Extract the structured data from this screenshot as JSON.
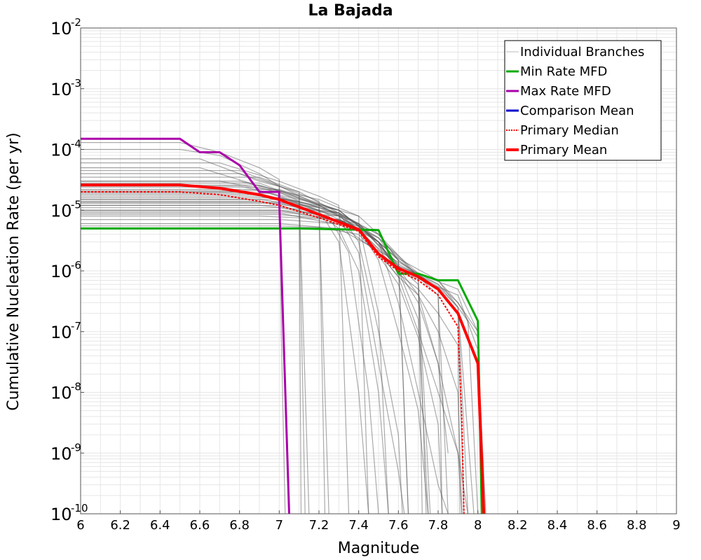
{
  "colors": {
    "branches": "#555555",
    "min_rate": "#00aa00",
    "max_rate": "#aa00aa",
    "comparison_mean": "#0000cc",
    "primary_median": "#ff0000",
    "primary_mean": "#ff0000",
    "grid": "#e6e6e6"
  },
  "chart_data": {
    "type": "line",
    "title": "La Bajada",
    "xlabel": "Magnitude",
    "ylabel": "Cumulative Nucleation Rate (per yr)",
    "xlim": [
      6,
      9
    ],
    "ylim": [
      1e-10,
      0.01
    ],
    "yscale": "log",
    "grid": true,
    "legend_position": "top-right",
    "x_ticks": [
      "6",
      "6.2",
      "6.4",
      "6.6",
      "6.8",
      "7",
      "7.2",
      "7.4",
      "7.6",
      "7.8",
      "8",
      "8.2",
      "8.4",
      "8.6",
      "8.8",
      "9"
    ],
    "y_ticks": [
      {
        "base": "10",
        "exp": "-10",
        "value": 1e-10
      },
      {
        "base": "10",
        "exp": "-9",
        "value": 1e-09
      },
      {
        "base": "10",
        "exp": "-8",
        "value": 1e-08
      },
      {
        "base": "10",
        "exp": "-7",
        "value": 1e-07
      },
      {
        "base": "10",
        "exp": "-6",
        "value": 1e-06
      },
      {
        "base": "10",
        "exp": "-5",
        "value": 1e-05
      },
      {
        "base": "10",
        "exp": "-4",
        "value": 0.0001
      },
      {
        "base": "10",
        "exp": "-3",
        "value": 0.001
      },
      {
        "base": "10",
        "exp": "-2",
        "value": 0.01
      }
    ],
    "series": [
      {
        "name": "Individual Branches",
        "style": "thin",
        "branches": [
          {
            "x": [
              6,
              6.5,
              6.7,
              6.9,
              7.0,
              7.01,
              7.03
            ],
            "y": [
              0.00013,
              0.00013,
              9e-05,
              5e-05,
              3.2e-05,
              1e-07,
              1e-10
            ]
          },
          {
            "x": [
              6,
              6.5,
              6.7,
              6.9,
              7.0,
              7.05
            ],
            "y": [
              0.0001,
              0.0001,
              8e-05,
              4e-05,
              2.5e-05,
              1e-10
            ]
          },
          {
            "x": [
              6,
              6.6,
              6.9,
              7.1,
              7.15
            ],
            "y": [
              7e-05,
              7e-05,
              3e-05,
              2e-05,
              1e-10
            ]
          },
          {
            "x": [
              6,
              6.6,
              6.9,
              7.1,
              7.13
            ],
            "y": [
              5e-05,
              5e-05,
              2.5e-05,
              1.7e-05,
              1e-10
            ]
          },
          {
            "x": [
              6,
              6.7,
              7.0,
              7.1,
              7.11
            ],
            "y": [
              3e-05,
              3e-05,
              2e-05,
              1.4e-05,
              1e-10
            ]
          },
          {
            "x": [
              6,
              6.8,
              7.0,
              7.2,
              7.23
            ],
            "y": [
              4e-05,
              4e-05,
              2.5e-05,
              1.4e-05,
              1e-10
            ]
          },
          {
            "x": [
              6,
              6.8,
              7.1,
              7.2,
              7.25
            ],
            "y": [
              2e-05,
              2e-05,
              1.4e-05,
              1.1e-05,
              1e-10
            ]
          },
          {
            "x": [
              6,
              6.7,
              7.0,
              7.2,
              7.3,
              7.35
            ],
            "y": [
              6e-05,
              6e-05,
              3e-05,
              1.7e-05,
              1.2e-05,
              1e-10
            ]
          },
          {
            "x": [
              6,
              6.8,
              7.1,
              7.3,
              7.4,
              7.45
            ],
            "y": [
              2.5e-05,
              2.5e-05,
              1.5e-05,
              1e-05,
              8e-06,
              1e-10
            ]
          },
          {
            "x": [
              6,
              6.9,
              7.2,
              7.3,
              7.4,
              7.5,
              7.55
            ],
            "y": [
              1.5e-05,
              1.5e-05,
              1.1e-05,
              9e-06,
              6e-06,
              2e-07,
              1e-10
            ]
          },
          {
            "x": [
              6,
              6.8,
              7.2,
              7.4,
              7.5,
              7.6,
              7.65
            ],
            "y": [
              3e-05,
              3e-05,
              1.5e-05,
              8e-06,
              4e-06,
              1.5e-06,
              1e-10
            ]
          },
          {
            "x": [
              6,
              6.9,
              7.3,
              7.5,
              7.6,
              7.7,
              7.74
            ],
            "y": [
              1.2e-05,
              1.2e-05,
              9e-06,
              4e-06,
              1.5e-06,
              8e-07,
              1e-10
            ]
          },
          {
            "x": [
              6,
              6.9,
              7.3,
              7.5,
              7.6,
              7.7,
              7.76
            ],
            "y": [
              8e-06,
              8e-06,
              7e-06,
              3.5e-06,
              1.2e-06,
              6e-07,
              1e-10
            ]
          },
          {
            "x": [
              6,
              6.8,
              7.2,
              7.5,
              7.7,
              7.8,
              7.85
            ],
            "y": [
              2e-05,
              2e-05,
              1.2e-05,
              4e-06,
              8e-07,
              4e-07,
              1e-10
            ]
          },
          {
            "x": [
              6,
              7.0,
              7.4,
              7.6,
              7.8,
              7.9,
              7.93
            ],
            "y": [
              1e-05,
              1e-05,
              6e-06,
              1.5e-06,
              5e-07,
              2e-07,
              1e-10
            ]
          },
          {
            "x": [
              6,
              7.0,
              7.3,
              7.6,
              7.8,
              7.9,
              7.95
            ],
            "y": [
              6e-06,
              6e-06,
              5e-06,
              1.4e-06,
              6e-07,
              2.5e-07,
              1e-10
            ]
          },
          {
            "x": [
              6,
              6.9,
              7.3,
              7.6,
              7.8,
              7.95,
              8.0
            ],
            "y": [
              1.8e-05,
              1.8e-05,
              1e-05,
              1.6e-06,
              7e-07,
              1.5e-07,
              1e-10
            ]
          },
          {
            "x": [
              6,
              6.9,
              7.3,
              7.6,
              7.9,
              8.0,
              8.02
            ],
            "y": [
              1.4e-05,
              1.4e-05,
              9e-06,
              1.2e-06,
              5e-07,
              1e-07,
              1e-10
            ]
          },
          {
            "x": [
              6,
              7.0,
              7.4,
              7.6,
              7.9,
              8.0,
              8.04
            ],
            "y": [
              9e-06,
              9e-06,
              5e-06,
              1e-06,
              4e-07,
              5e-08,
              1e-10
            ]
          },
          {
            "x": [
              6,
              7.0,
              7.3,
              7.5,
              7.6,
              7.7,
              7.8,
              7.85
            ],
            "y": [
              2.2e-05,
              2.2e-05,
              1e-05,
              3e-06,
              1e-06,
              3e-07,
              3e-08,
              1e-09
            ]
          },
          {
            "x": [
              6,
              7.0,
              7.2,
              7.4,
              7.5,
              7.6,
              7.7,
              7.75
            ],
            "y": [
              1.6e-05,
              1.6e-05,
              1e-05,
              5e-06,
              1.5e-06,
              1e-07,
              5e-09,
              1e-10
            ]
          },
          {
            "x": [
              6,
              6.9,
              7.2,
              7.3,
              7.4,
              7.5,
              7.6,
              7.63
            ],
            "y": [
              2.8e-05,
              2.8e-05,
              1.2e-05,
              8e-06,
              2e-06,
              3e-08,
              5e-10,
              1e-10
            ]
          },
          {
            "x": [
              6,
              7.0,
              7.2,
              7.3,
              7.4,
              7.5,
              7.55
            ],
            "y": [
              1.3e-05,
              1.3e-05,
              9e-06,
              5e-06,
              1e-06,
              1e-08,
              1e-10
            ]
          },
          {
            "x": [
              6,
              7.0,
              7.25,
              7.35,
              7.45,
              7.5
            ],
            "y": [
              1.1e-05,
              1.1e-05,
              8e-06,
              2e-06,
              1e-08,
              1e-10
            ]
          },
          {
            "x": [
              6,
              6.95,
              7.2,
              7.3,
              7.4,
              7.45
            ],
            "y": [
              1.9e-05,
              1.9e-05,
              1e-05,
              3e-06,
              1e-08,
              1e-10
            ]
          },
          {
            "x": [
              6,
              7.0,
              7.3,
              7.5,
              7.6,
              7.7,
              7.8,
              7.9,
              7.92
            ],
            "y": [
              7e-06,
              7e-06,
              6e-06,
              2e-06,
              8e-07,
              1e-07,
              1e-08,
              1e-09,
              1e-10
            ]
          },
          {
            "x": [
              6,
              7.0,
              7.3,
              7.5,
              7.7,
              7.8,
              7.9,
              7.95
            ],
            "y": [
              1.5e-05,
              1.5e-05,
              8e-06,
              3e-06,
              4e-07,
              3e-08,
              1e-09,
              1e-10
            ]
          },
          {
            "x": [
              6,
              7.0,
              7.3,
              7.5,
              7.6,
              7.7,
              7.8,
              7.85
            ],
            "y": [
              1e-05,
              1e-05,
              8e-06,
              3e-06,
              3e-07,
              1e-08,
              3e-10,
              1e-10
            ]
          },
          {
            "x": [
              6,
              6.9,
              7.3,
              7.5,
              7.6,
              7.7,
              7.75
            ],
            "y": [
              2.4e-05,
              2.4e-05,
              1e-05,
              3e-06,
              1e-06,
              1.6e-07,
              1e-10
            ]
          },
          {
            "x": [
              6,
              7.0,
              7.2,
              7.4,
              7.5,
              7.6,
              7.7,
              7.8,
              7.82
            ],
            "y": [
              5.5e-06,
              5.5e-06,
              5.2e-06,
              4e-06,
              1.8e-06,
              6e-07,
              8e-08,
              3e-09,
              1e-10
            ]
          },
          {
            "x": [
              6,
              6.9,
              7.1,
              7.3,
              7.4,
              7.5,
              7.6,
              7.62
            ],
            "y": [
              3.5e-05,
              3.5e-05,
              2e-05,
              9e-06,
              3e-06,
              1e-07,
              2e-09,
              1e-10
            ]
          },
          {
            "x": [
              6,
              6.8,
              7.0,
              7.2,
              7.4,
              7.6,
              7.8,
              7.9,
              8.0,
              8.02
            ],
            "y": [
              4.5e-05,
              4.5e-05,
              2.5e-05,
              1.2e-05,
              6e-06,
              1.2e-06,
              6e-07,
              3e-07,
              1e-07,
              1e-10
            ]
          },
          {
            "x": [
              6,
              6.9,
              7.2,
              7.4,
              7.6,
              7.8,
              7.9,
              8.0,
              8.03
            ],
            "y": [
              1.7e-05,
              1.7e-05,
              1.1e-05,
              6e-06,
              1.1e-06,
              7e-07,
              3e-07,
              8e-08,
              1e-10
            ]
          },
          {
            "x": [
              6,
              7.0,
              7.3,
              7.4,
              7.5,
              7.6,
              7.7,
              7.8,
              7.9,
              7.92
            ],
            "y": [
              8.5e-06,
              8.5e-06,
              7e-06,
              5e-06,
              2e-06,
              8e-07,
              4e-07,
              1e-07,
              1e-08,
              1e-10
            ]
          },
          {
            "x": [
              6,
              6.9,
              7.1,
              7.3,
              7.5,
              7.6,
              7.7,
              7.8,
              7.9,
              7.91
            ],
            "y": [
              2.6e-05,
              2.6e-05,
              1.6e-05,
              1e-05,
              3e-06,
              9e-07,
              5e-07,
              2e-07,
              6e-08,
              1e-10
            ]
          },
          {
            "x": [
              6,
              7.0,
              7.4,
              7.6,
              7.8,
              7.9,
              7.98
            ],
            "y": [
              1.2e-05,
              1.2e-05,
              5.5e-06,
              1.3e-06,
              5.5e-07,
              2.5e-07,
              1e-10
            ]
          },
          {
            "x": [
              6,
              7.0,
              7.3,
              7.5,
              7.6,
              7.65
            ],
            "y": [
              9.5e-06,
              9.5e-06,
              7e-06,
              3e-06,
              1.5e-06,
              1e-10
            ]
          },
          {
            "x": [
              6,
              7.0,
              7.3,
              7.5,
              7.7,
              7.72
            ],
            "y": [
              1.35e-05,
              1.35e-05,
              8e-06,
              3.5e-06,
              8e-07,
              1e-10
            ]
          },
          {
            "x": [
              6,
              6.9,
              7.3,
              7.5,
              7.7,
              7.8,
              7.82
            ],
            "y": [
              2.1e-05,
              2.1e-05,
              9e-06,
              3.5e-06,
              9e-07,
              5e-07,
              1e-10
            ]
          }
        ]
      },
      {
        "name": "Min Rate MFD",
        "x": [
          6.0,
          7.0,
          7.1,
          7.5,
          7.6,
          7.7,
          7.8,
          7.9,
          8.0,
          8.02
        ],
        "y": [
          5e-06,
          5e-06,
          5e-06,
          4.7e-06,
          9e-07,
          9e-07,
          7e-07,
          7e-07,
          1.5e-07,
          1e-10
        ]
      },
      {
        "name": "Max Rate MFD",
        "x": [
          6.0,
          6.5,
          6.6,
          6.7,
          6.8,
          6.9,
          7.0,
          7.0,
          7.05
        ],
        "y": [
          0.00015,
          0.00015,
          9e-05,
          9e-05,
          5.5e-05,
          2e-05,
          2e-05,
          1.5e-05,
          1e-10
        ]
      },
      {
        "name": "Comparison Mean",
        "x": [],
        "y": []
      },
      {
        "name": "Primary Median",
        "x": [
          6.0,
          6.5,
          6.7,
          6.9,
          7.0,
          7.2,
          7.4,
          7.5,
          7.6,
          7.7,
          7.8,
          7.9,
          7.92,
          7.93
        ],
        "y": [
          2e-05,
          2e-05,
          1.8e-05,
          1.4e-05,
          1.2e-05,
          7.5e-06,
          4.5e-06,
          1.7e-06,
          1e-06,
          7e-07,
          4e-07,
          1.2e-07,
          3e-09,
          1e-10
        ]
      },
      {
        "name": "Primary Mean",
        "x": [
          6.0,
          6.5,
          6.7,
          6.9,
          7.0,
          7.2,
          7.4,
          7.5,
          7.6,
          7.7,
          7.8,
          7.9,
          8.0,
          8.03
        ],
        "y": [
          2.6e-05,
          2.6e-05,
          2.3e-05,
          1.8e-05,
          1.5e-05,
          8.5e-06,
          4.8e-06,
          1.9e-06,
          1.1e-06,
          8e-07,
          5e-07,
          2e-07,
          3e-08,
          1e-10
        ]
      }
    ]
  }
}
